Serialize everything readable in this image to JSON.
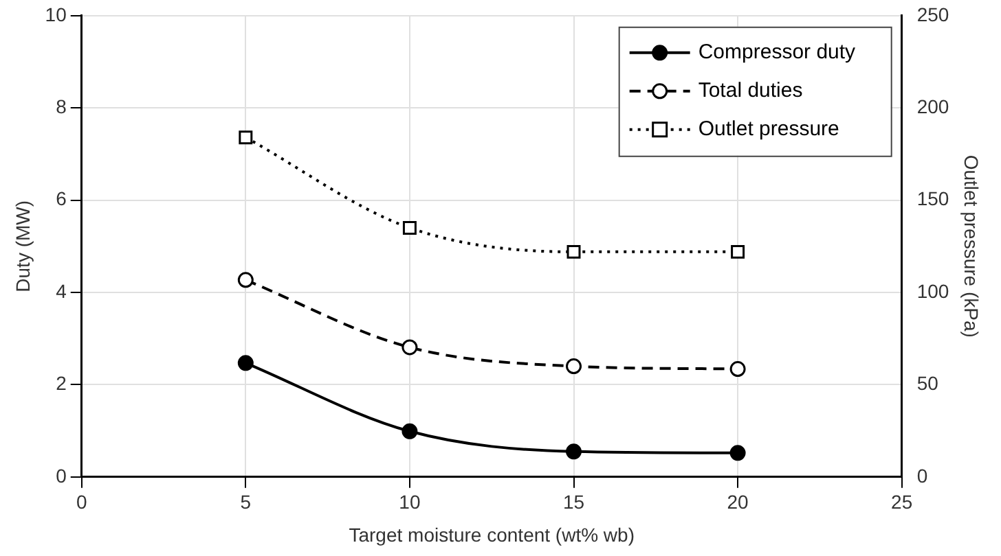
{
  "chart_data": {
    "type": "line",
    "xlabel": "Target moisture content (wt% wb)",
    "ylabel": "Duty (MW)",
    "y2label": "Outlet pressure (kPa)",
    "x": [
      5,
      10,
      15,
      20
    ],
    "xlim": [
      0,
      25
    ],
    "xticks": [
      0,
      5,
      10,
      15,
      20,
      25
    ],
    "ylim": [
      0,
      10
    ],
    "yticks": [
      0,
      2,
      4,
      6,
      8,
      10
    ],
    "y2lim": [
      0,
      250
    ],
    "y2ticks": [
      0,
      50,
      100,
      150,
      200,
      250
    ],
    "grid": true,
    "legend": "top right",
    "series": [
      {
        "name": "Compressor duty",
        "color": "#000000",
        "values": [
          2.47,
          0.99,
          0.55,
          0.52
        ],
        "marker": "circle",
        "line_style": "solid"
      },
      {
        "name": "Total duties",
        "color": "#000000",
        "values": [
          4.27,
          2.81,
          2.4,
          2.34
        ],
        "marker": "circle",
        "line_style": "dashed"
      },
      {
        "name": "Outlet pressure",
        "color": "#000000",
        "values": [
          184,
          135,
          122,
          122
        ],
        "marker": "square",
        "line_style": "dotted",
        "axis": "y2"
      }
    ]
  }
}
